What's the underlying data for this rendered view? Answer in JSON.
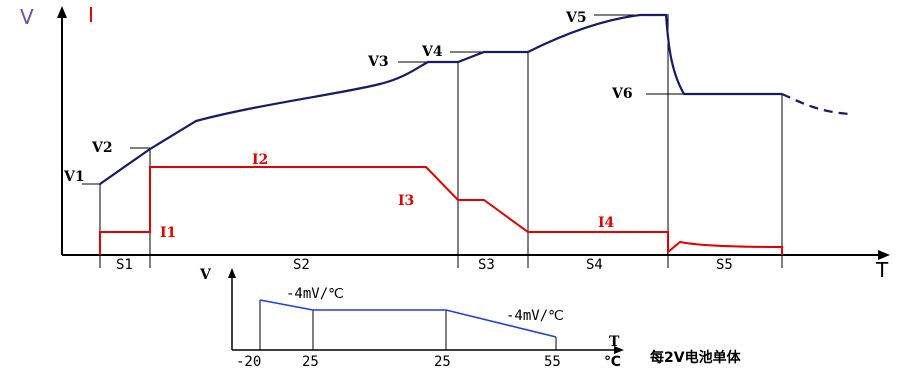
{
  "main_chart": {
    "y_axis_label_v": "V",
    "y_axis_label_i": "I",
    "x_axis_label": "T",
    "voltage_labels": [
      "V1",
      "V2",
      "V3",
      "V4",
      "V5",
      "V6"
    ],
    "current_labels": [
      "I1",
      "I2",
      "I3",
      "I4"
    ],
    "stage_labels": [
      "S1",
      "S2",
      "S3",
      "S4",
      "S5"
    ],
    "colors": {
      "voltage_curve": "#1c1a66",
      "current_curve": "#e00000",
      "axes": "#000000"
    }
  },
  "temp_chart": {
    "y_axis_label": "V",
    "x_axis_label": "T",
    "x_unit": "℃",
    "slope_left": "-4mV/℃",
    "slope_right": "-4mV/℃",
    "tick_labels": [
      "-20",
      "25",
      "25",
      "55"
    ],
    "caption": "每2V电池单体",
    "colors": {
      "line": "#1f3fd6"
    }
  }
}
